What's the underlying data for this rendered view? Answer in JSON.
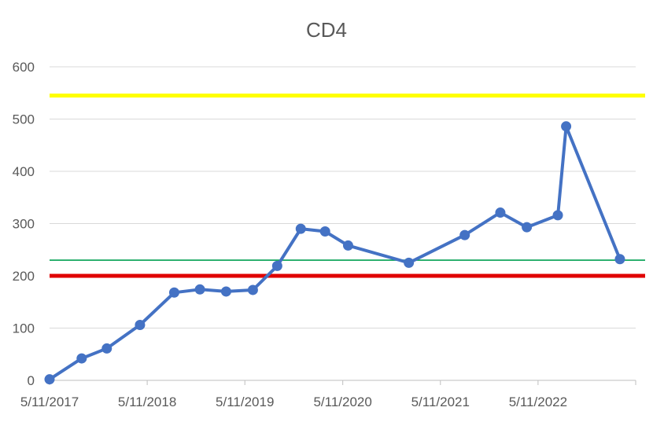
{
  "chart_data": {
    "type": "line",
    "title": "CD4",
    "xlabel": "",
    "ylabel": "",
    "ylim": [
      0,
      600
    ],
    "y_ticks": [
      "0",
      "100",
      "200",
      "300",
      "400",
      "500",
      "600"
    ],
    "x_axis_type": "date",
    "xlim": [
      "2017-05-11",
      "2023-05-11"
    ],
    "x_ticks": [
      {
        "date": "2017-05-11",
        "label": "5/11/2017"
      },
      {
        "date": "2018-05-11",
        "label": "5/11/2018"
      },
      {
        "date": "2019-05-11",
        "label": "5/11/2019"
      },
      {
        "date": "2020-05-11",
        "label": "5/11/2020"
      },
      {
        "date": "2021-05-11",
        "label": "5/11/2021"
      },
      {
        "date": "2022-05-11",
        "label": "5/11/2022"
      }
    ],
    "grid": true,
    "legend": "none",
    "series": [
      {
        "color": "#4472C4",
        "marker": "circle",
        "points": [
          {
            "x": "2017-05-11",
            "y": 2
          },
          {
            "x": "2017-09-08",
            "y": 42
          },
          {
            "x": "2017-12-11",
            "y": 61
          },
          {
            "x": "2018-04-14",
            "y": 106
          },
          {
            "x": "2018-08-20",
            "y": 168
          },
          {
            "x": "2018-11-24",
            "y": 174
          },
          {
            "x": "2019-03-02",
            "y": 170
          },
          {
            "x": "2019-06-10",
            "y": 173
          },
          {
            "x": "2019-09-09",
            "y": 219
          },
          {
            "x": "2019-12-06",
            "y": 290
          },
          {
            "x": "2020-03-06",
            "y": 285
          },
          {
            "x": "2020-05-31",
            "y": 258
          },
          {
            "x": "2021-01-13",
            "y": 225
          },
          {
            "x": "2021-08-10",
            "y": 278
          },
          {
            "x": "2021-12-21",
            "y": 321
          },
          {
            "x": "2022-03-30",
            "y": 293
          },
          {
            "x": "2022-07-24",
            "y": 316
          },
          {
            "x": "2022-08-24",
            "y": 486
          },
          {
            "x": "2023-03-13",
            "y": 232
          }
        ]
      }
    ],
    "reference_lines": [
      {
        "y": 545,
        "color": "#FFFF00",
        "style": "thick"
      },
      {
        "y": 230,
        "color": "#00A050",
        "style": "thin"
      },
      {
        "y": 200,
        "color": "#E00000",
        "style": "thick"
      }
    ],
    "colors": {
      "gridline": "#D9D9D9",
      "axis": "#BFBFBF",
      "text": "#595959"
    }
  }
}
